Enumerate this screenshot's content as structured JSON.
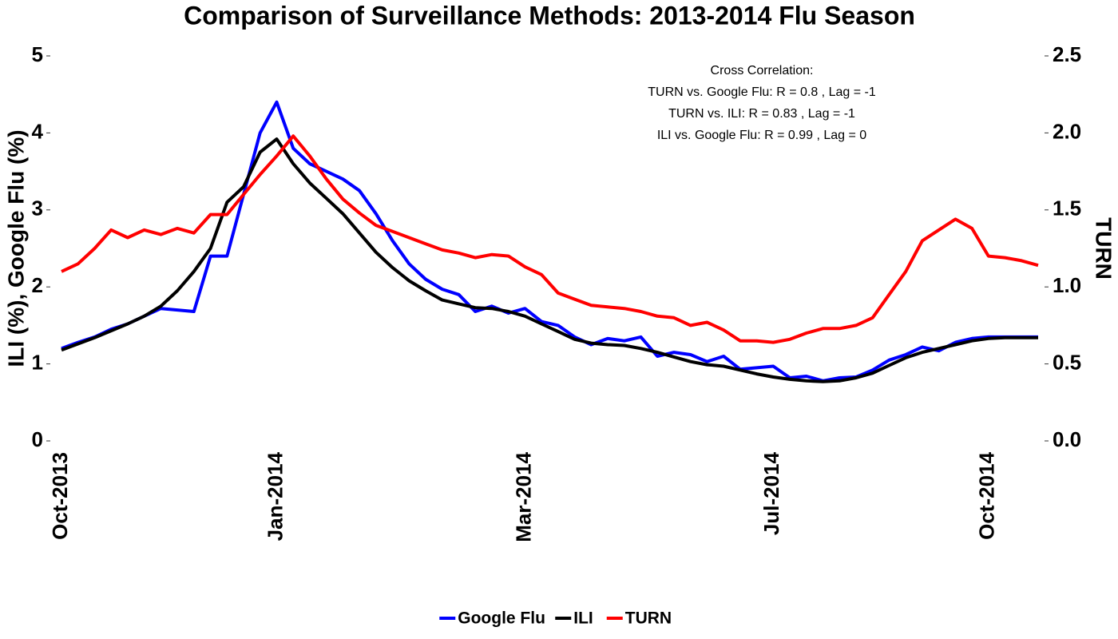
{
  "chart_data": {
    "type": "line",
    "title": "Comparison of Surveillance Methods: 2013-2014 Flu Season",
    "ylabel": "ILI (%), Google Flu (%)",
    "y2label": "TURN",
    "annotation": [
      "Cross Correlation:",
      "TURN vs. Google Flu: R = 0.8 , Lag = -1",
      "TURN vs. ILI: R = 0.83 , Lag = -1",
      "ILI vs. Google Flu: R = 0.99 , Lag = 0"
    ],
    "categories": [
      "Oct-2013",
      null,
      null,
      null,
      null,
      null,
      null,
      null,
      null,
      null,
      null,
      null,
      null,
      "Jan-2014",
      null,
      null,
      null,
      null,
      null,
      null,
      null,
      null,
      null,
      null,
      null,
      null,
      null,
      null,
      "Mar-2014",
      null,
      null,
      null,
      null,
      null,
      null,
      null,
      null,
      null,
      null,
      null,
      null,
      null,
      null,
      "Jul-2014",
      null,
      null,
      null,
      null,
      null,
      null,
      null,
      null,
      null,
      null,
      null,
      null,
      "Oct-2014",
      null,
      null,
      null
    ],
    "ylim": [
      0,
      5
    ],
    "yticks": [
      0,
      1,
      2,
      3,
      4,
      5
    ],
    "y2lim": [
      0,
      2.5
    ],
    "y2ticks": [
      {
        "value": 0,
        "label": "0.0"
      },
      0.5,
      {
        "value": 1,
        "label": "1.0"
      },
      1.5,
      {
        "value": 2,
        "label": "2.0"
      },
      2.5
    ],
    "legend": "bottom",
    "series": [
      {
        "name": "Google Flu",
        "color": "#0000ff",
        "values": [
          1.2,
          1.28,
          1.35,
          1.45,
          1.52,
          1.62,
          1.72,
          1.7,
          1.68,
          2.4,
          2.4,
          3.2,
          4.0,
          4.4,
          3.8,
          3.6,
          3.5,
          3.4,
          3.25,
          2.95,
          2.6,
          2.3,
          2.1,
          1.97,
          1.9,
          1.68,
          1.75,
          1.66,
          1.72,
          1.55,
          1.5,
          1.35,
          1.25,
          1.33,
          1.3,
          1.35,
          1.1,
          1.15,
          1.12,
          1.03,
          1.1,
          0.93,
          0.95,
          0.97,
          0.82,
          0.84,
          0.78,
          0.82,
          0.83,
          0.92,
          1.05,
          1.12,
          1.22,
          1.17,
          1.28,
          1.33,
          1.35,
          1.35,
          1.35,
          1.35
        ]
      },
      {
        "name": "ILI",
        "color": "#000000",
        "values": [
          1.18,
          1.26,
          1.34,
          1.43,
          1.52,
          1.62,
          1.75,
          1.95,
          2.2,
          2.5,
          3.1,
          3.3,
          3.75,
          3.92,
          3.6,
          3.35,
          3.15,
          2.95,
          2.7,
          2.45,
          2.25,
          2.08,
          1.95,
          1.83,
          1.78,
          1.73,
          1.72,
          1.68,
          1.62,
          1.52,
          1.42,
          1.32,
          1.27,
          1.25,
          1.24,
          1.2,
          1.15,
          1.09,
          1.03,
          0.99,
          0.97,
          0.92,
          0.87,
          0.83,
          0.8,
          0.78,
          0.77,
          0.78,
          0.82,
          0.88,
          0.98,
          1.08,
          1.15,
          1.2,
          1.25,
          1.3,
          1.33,
          1.34,
          1.34,
          1.34
        ]
      },
      {
        "name": "TURN",
        "color": "#ff0000",
        "axis": "y2",
        "values": [
          1.1,
          1.15,
          1.25,
          1.37,
          1.32,
          1.37,
          1.34,
          1.38,
          1.35,
          1.47,
          1.47,
          1.6,
          1.73,
          1.85,
          1.98,
          1.85,
          1.7,
          1.57,
          1.48,
          1.4,
          1.36,
          1.32,
          1.28,
          1.24,
          1.22,
          1.19,
          1.21,
          1.2,
          1.13,
          1.08,
          0.96,
          0.92,
          0.88,
          0.87,
          0.86,
          0.84,
          0.81,
          0.8,
          0.75,
          0.77,
          0.72,
          0.65,
          0.65,
          0.64,
          0.66,
          0.7,
          0.73,
          0.73,
          0.75,
          0.8,
          0.95,
          1.1,
          1.3,
          1.37,
          1.44,
          1.38,
          1.2,
          1.19,
          1.17,
          1.14
        ]
      }
    ]
  }
}
